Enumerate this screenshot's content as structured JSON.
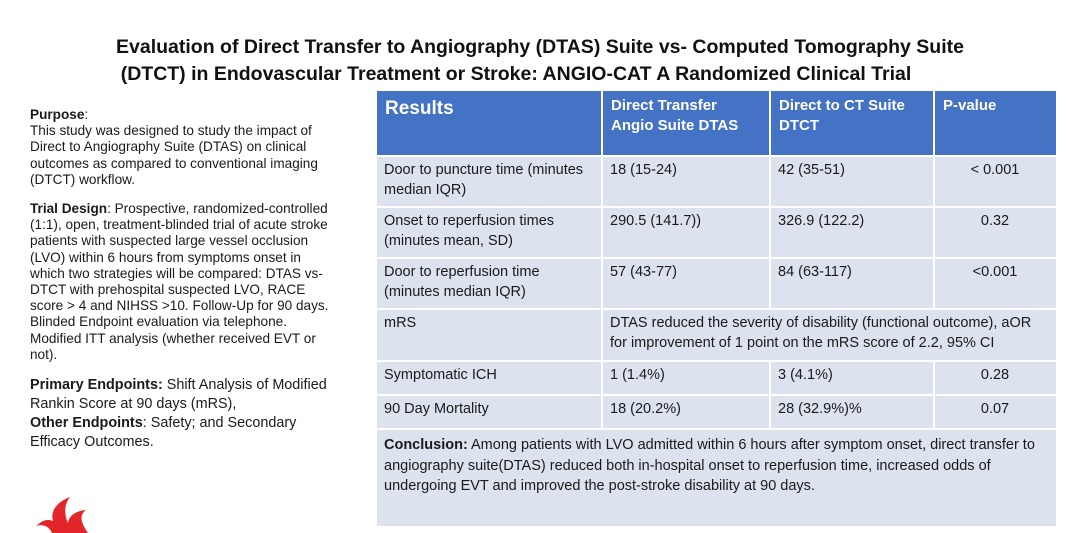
{
  "title": {
    "line1": "Evaluation of Direct Transfer to Angiography (DTAS) Suite vs- Computed Tomography Suite",
    "line2": "(DTCT) in Endovascular Treatment or Stroke:  ANGIO-CAT A Randomized Clinical Trial"
  },
  "left": {
    "purpose_label": "Purpose",
    "purpose_text": "This study was designed to study the impact of Direct to Angiography Suite (DTAS) on clinical outcomes as compared to conventional imaging (DTCT) workflow.",
    "design_label": "Trial Design",
    "design_text": ": Prospective, randomized-controlled (1:1), open, treatment-blinded trial of acute stroke patients with suspected large vessel occlusion (LVO) within 6 hours from symptoms onset in which two strategies will be compared: DTAS vs- DTCT with prehospital suspected LVO, RACE score > 4  and NIHSS >10. Follow-Up for 90 days. Blinded Endpoint evaluation via telephone. Modified ITT analysis (whether received EVT or not).",
    "primary_label": "Primary Endpoints:",
    "primary_text": " Shift Analysis of Modified Rankin Score at 90 days (mRS),",
    "other_label": "Other Endpoints",
    "other_text": ": Safety; and Secondary Efficacy Outcomes."
  },
  "table": {
    "headers": [
      "Results",
      "Direct Transfer Angio Suite DTAS",
      "Direct to CT Suite DTCT",
      "P-value"
    ],
    "rows": [
      {
        "label": "Door to puncture time (minutes median IQR)",
        "dtas": "18 (15-24)",
        "dtct": "42 (35-51)",
        "p": "< 0.001"
      },
      {
        "label": "Onset to reperfusion times (minutes mean, SD)",
        "dtas": "290.5 (141.7))",
        "dtct": "326.9 (122.2)",
        "p": "0.32"
      },
      {
        "label": "Door to reperfusion time (minutes median IQR)",
        "dtas": "57 (43-77)",
        "dtct": "84 (63-117)",
        "p": "<0.001"
      },
      {
        "label": "mRS",
        "merged": "DTAS reduced the severity of disability (functional outcome), aOR for improvement of 1 point on the mRS score of 2.2, 95% CI"
      },
      {
        "label": "Symptomatic ICH",
        "dtas": "1 (1.4%)",
        "dtct": "3 (4.1%)",
        "p": "0.28"
      },
      {
        "label": "90 Day Mortality",
        "dtas": "18 (20.2%)",
        "dtct": "28 (32.9%)%",
        "p": "0.07"
      }
    ],
    "conclusion_label": "Conclusion:",
    "conclusion_text": " Among patients with LVO admitted within 6 hours after symptom onset, direct transfer to angiography suite(DTAS) reduced both in-hospital onset to reperfusion time, increased odds of undergoing EVT  and improved the post-stroke disability at 90 days."
  },
  "colors": {
    "header_blue": "#4472c4",
    "cell_bg": "#dde2ef",
    "logo_red": "#e3262a"
  },
  "icons": {
    "logo": "flame-logo-icon"
  }
}
